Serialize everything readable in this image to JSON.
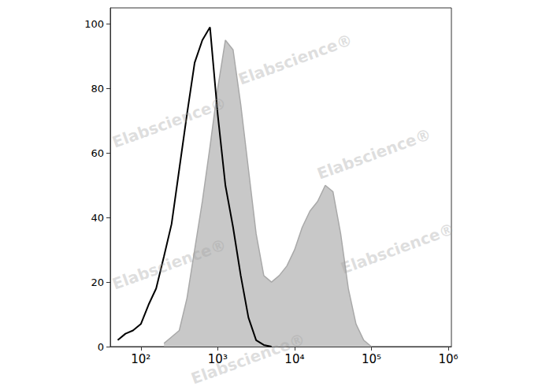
{
  "chart_data": {
    "type": "histogram",
    "log": "x",
    "grid": false,
    "xlim": [
      40,
      1100000
    ],
    "ylim": [
      0,
      105
    ],
    "xticks": [
      {
        "value": 100,
        "label": "10²"
      },
      {
        "value": 1000,
        "label": "10³"
      },
      {
        "value": 10000,
        "label": "10⁴"
      },
      {
        "value": 100000,
        "label": "10⁵"
      },
      {
        "value": 1000000,
        "label": "10⁶"
      }
    ],
    "yticks": [
      0,
      20,
      40,
      60,
      80,
      100
    ],
    "annotations": [
      {
        "text": "Elabscience®"
      }
    ],
    "x": [
      50,
      63,
      79,
      100,
      126,
      158,
      200,
      251,
      316,
      398,
      501,
      631,
      794,
      1000,
      1259,
      1585,
      1995,
      2512,
      3162,
      3981,
      5012,
      6310,
      7943,
      10000,
      12589,
      15849,
      19953,
      25119,
      31623,
      39811,
      50119,
      63096,
      79433,
      100000
    ],
    "series": [
      {
        "type": "area",
        "color": "#c8c8c8",
        "values": [
          null,
          null,
          null,
          null,
          null,
          null,
          1,
          3,
          5,
          15,
          30,
          45,
          62,
          80,
          95,
          92,
          75,
          55,
          35,
          22,
          20,
          22,
          25,
          30,
          37,
          42,
          45,
          50,
          48,
          35,
          18,
          7,
          2,
          0
        ]
      },
      {
        "type": "line",
        "color": "#000000",
        "values": [
          2,
          4,
          5,
          7,
          13,
          18,
          28,
          38,
          55,
          72,
          88,
          95,
          99,
          72,
          50,
          37,
          22,
          9,
          2,
          0.5,
          0,
          null,
          null,
          null,
          null,
          null,
          null,
          null,
          null,
          null,
          null,
          null,
          null,
          null
        ]
      }
    ]
  }
}
